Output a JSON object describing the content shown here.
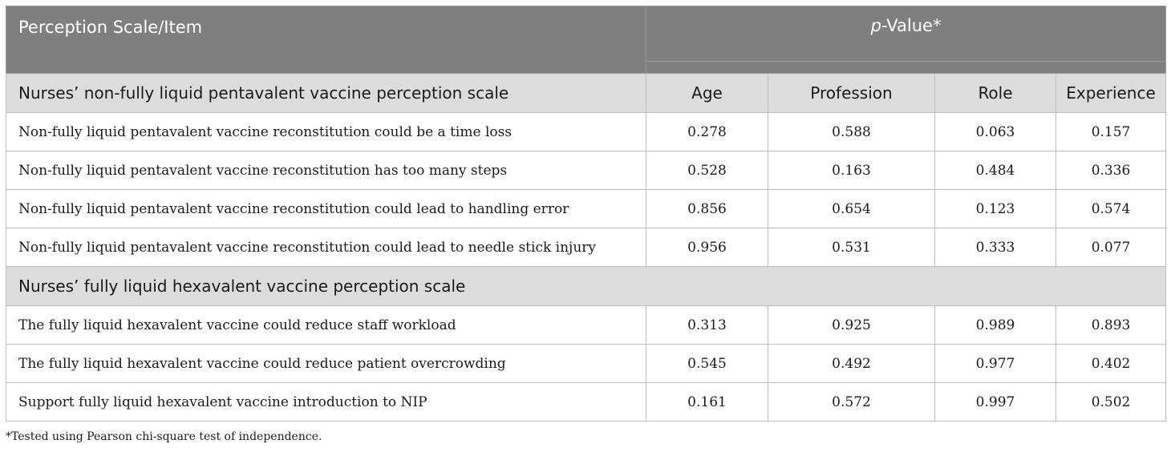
{
  "header": {
    "scale_item": "Perception Scale/Item",
    "pvalue_italic": "p",
    "pvalue_rest": "-Value*"
  },
  "sections": [
    {
      "title": "Nurses’ non-fully liquid pentavalent vaccine perception scale",
      "columns": [
        "Age",
        "Profession",
        "Role",
        "Experience"
      ],
      "rows": [
        {
          "item": "Non-fully liquid pentavalent vaccine reconstitution could be a time loss",
          "values": [
            "0.278",
            "0.588",
            "0.063",
            "0.157"
          ]
        },
        {
          "item": "Non-fully liquid pentavalent vaccine reconstitution has too many steps",
          "values": [
            "0.528",
            "0.163",
            "0.484",
            "0.336"
          ]
        },
        {
          "item": "Non-fully liquid pentavalent vaccine reconstitution could lead to handling error",
          "values": [
            "0.856",
            "0.654",
            "0.123",
            "0.574"
          ]
        },
        {
          "item": "Non-fully liquid pentavalent vaccine reconstitution could lead to needle stick injury",
          "values": [
            "0.956",
            "0.531",
            "0.333",
            "0.077"
          ]
        }
      ]
    },
    {
      "title": "Nurses’ fully liquid hexavalent vaccine perception scale",
      "rows": [
        {
          "item": "The fully liquid hexavalent vaccine could reduce staff workload",
          "values": [
            "0.313",
            "0.925",
            "0.989",
            "0.893"
          ]
        },
        {
          "item": "The fully liquid hexavalent vaccine could reduce patient overcrowding",
          "values": [
            "0.545",
            "0.492",
            "0.977",
            "0.402"
          ]
        },
        {
          "item": "Support fully liquid hexavalent vaccine introduction to NIP",
          "values": [
            "0.161",
            "0.572",
            "0.997",
            "0.502"
          ]
        }
      ]
    }
  ],
  "footnote": "*Tested using Pearson chi-square test of independence."
}
